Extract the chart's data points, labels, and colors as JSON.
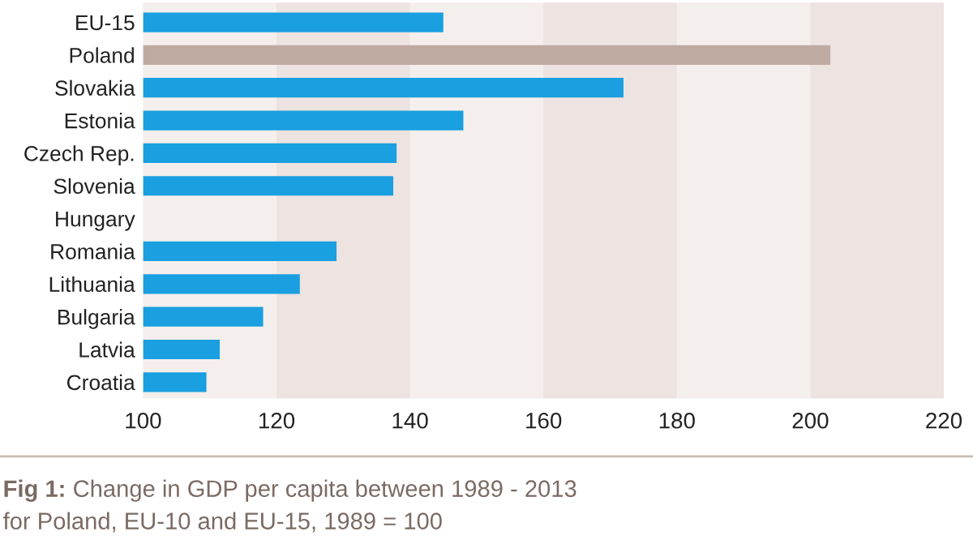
{
  "chart_data": {
    "type": "bar",
    "orientation": "horizontal",
    "categories": [
      "EU-15",
      "Poland",
      "Slovakia",
      "Estonia",
      "Czech Rep.",
      "Slovenia",
      "Hungary",
      "Romania",
      "Lithuania",
      "Bulgaria",
      "Latvia",
      "Croatia"
    ],
    "values": [
      145,
      203,
      172,
      148,
      138,
      137.5,
      null,
      129,
      123.5,
      118,
      111.5,
      109.5
    ],
    "colors": [
      "#1a9fe0",
      "#bfaaa2",
      "#1a9fe0",
      "#1a9fe0",
      "#1a9fe0",
      "#1a9fe0",
      "#1a9fe0",
      "#1a9fe0",
      "#1a9fe0",
      "#1a9fe0",
      "#1a9fe0",
      "#1a9fe0"
    ],
    "xlim": [
      100,
      220
    ],
    "xticks": [
      100,
      120,
      140,
      160,
      180,
      200,
      220
    ],
    "bands": [
      {
        "axis": "x",
        "from": 120,
        "to": 140,
        "color": "#ede3e0"
      },
      {
        "axis": "x",
        "from": 160,
        "to": 180,
        "color": "#ede3e0"
      },
      {
        "axis": "x",
        "from": 200,
        "to": 220,
        "color": "#ede3e0"
      }
    ],
    "grid": false,
    "legend": false,
    "annotations": [
      "Fig 1:",
      "Change in GDP per capita between 1989 - 2013",
      "for Poland, EU-10 and EU-15, 1989 = 100"
    ]
  }
}
